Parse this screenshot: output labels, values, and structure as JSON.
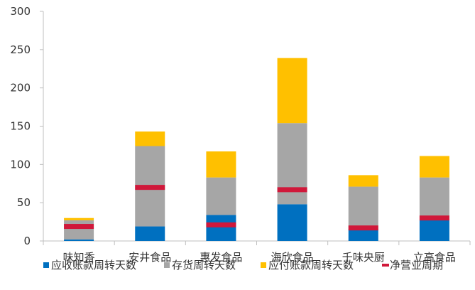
{
  "chart_data": {
    "type": "bar",
    "stacked": true,
    "categories": [
      "味知香",
      "安井食品",
      "惠发食品",
      "海欣食品",
      "千味央厨",
      "立高食品"
    ],
    "series": [
      {
        "name": "应收账款周转天数",
        "color": "#0070C0",
        "values": [
          2,
          19,
          34,
          48,
          16,
          28
        ]
      },
      {
        "name": "存货周转天数",
        "color": "#A6A6A6",
        "values": [
          25,
          105,
          49,
          106,
          55,
          55
        ]
      },
      {
        "name": "应付账款周转天数",
        "color": "#FFC000",
        "values": [
          3,
          19,
          34,
          85,
          15,
          28
        ]
      }
    ],
    "net_cycle": {
      "name": "净营业周期",
      "color": "#D0183A",
      "values": [
        19,
        70,
        21,
        67,
        17,
        30
      ]
    },
    "ylim": [
      0,
      300
    ],
    "yticks": [
      0,
      50,
      100,
      150,
      200,
      250,
      300
    ],
    "grid": false,
    "legend_position": "bottom",
    "title": "",
    "xlabel": "",
    "ylabel": ""
  }
}
